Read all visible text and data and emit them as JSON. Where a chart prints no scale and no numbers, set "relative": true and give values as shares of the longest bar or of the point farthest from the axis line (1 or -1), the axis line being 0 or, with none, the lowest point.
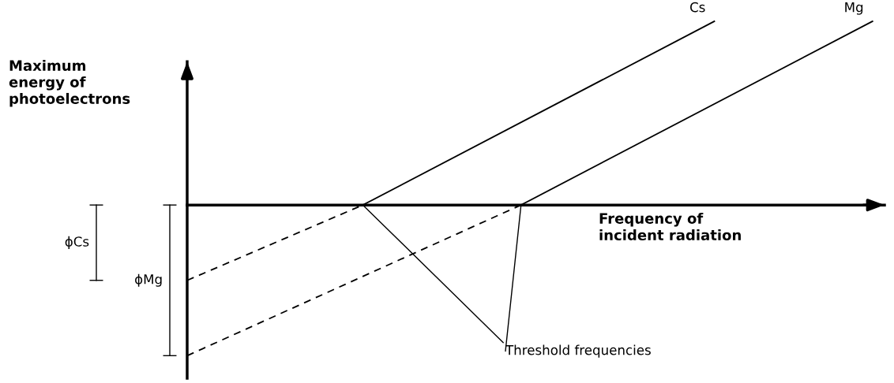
{
  "chart_data": {
    "type": "line",
    "relative": true,
    "ylabel": "Maximum\nenergy of\nphotoelectrons",
    "xlabel": "Frequency of\nincident radiation",
    "categories": [
      null,
      null,
      null,
      null,
      null,
      null,
      null,
      null,
      null,
      null,
      null,
      null,
      null,
      null,
      null,
      null,
      null,
      null,
      null,
      null,
      null,
      null,
      null,
      null,
      null,
      null,
      null,
      null,
      null,
      null,
      null,
      null,
      null,
      null,
      null,
      null,
      null,
      null,
      null,
      null
    ],
    "series": [
      {
        "name": "Cs",
        "color": "#000000",
        "line_style": "solid",
        "values": [
          null,
          null,
          null,
          null,
          null,
          null,
          null,
          null,
          null,
          null,
          0,
          null,
          null,
          null,
          null,
          null,
          null,
          null,
          null,
          null,
          null,
          null,
          null,
          null,
          null,
          null,
          null,
          null,
          null,
          null,
          1,
          null,
          null,
          null,
          null,
          null,
          null,
          null,
          null,
          null
        ]
      },
      {
        "color": "#000000",
        "line_style": "dashed",
        "values": [
          -0.41,
          null,
          null,
          null,
          null,
          null,
          null,
          null,
          null,
          null,
          0,
          null,
          null,
          null,
          null,
          null,
          null,
          null,
          null,
          null,
          null,
          null,
          null,
          null,
          null,
          null,
          null,
          null,
          null,
          null,
          null,
          null,
          null,
          null,
          null,
          null,
          null,
          null,
          null,
          null
        ]
      },
      {
        "name": "Mg",
        "color": "#000000",
        "line_style": "solid",
        "values": [
          null,
          null,
          null,
          null,
          null,
          null,
          null,
          null,
          null,
          null,
          null,
          null,
          null,
          null,
          null,
          null,
          null,
          null,
          null,
          0,
          null,
          null,
          null,
          null,
          null,
          null,
          null,
          null,
          null,
          null,
          null,
          null,
          null,
          null,
          null,
          null,
          null,
          null,
          null,
          1
        ]
      },
      {
        "color": "#000000",
        "line_style": "dashed",
        "values": [
          -0.82,
          null,
          null,
          null,
          null,
          null,
          null,
          null,
          null,
          null,
          null,
          null,
          null,
          null,
          null,
          null,
          null,
          null,
          null,
          0,
          null,
          null,
          null,
          null,
          null,
          null,
          null,
          null,
          null,
          null,
          null,
          null,
          null,
          null,
          null,
          null,
          null,
          null,
          null,
          null
        ]
      }
    ],
    "annotations": [
      "Threshold frequencies",
      "ϕCs",
      "ϕMg"
    ],
    "legend": false,
    "grid": false
  }
}
